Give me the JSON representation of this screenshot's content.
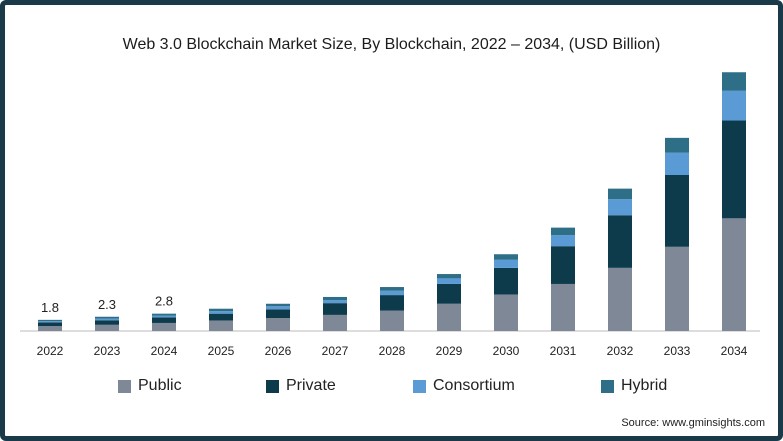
{
  "chart_data": {
    "type": "bar",
    "stacked": true,
    "title": "Web 3.0 Blockchain Market Size, By Blockchain, 2022 – 2034, (USD Billion)",
    "categories": [
      "2022",
      "2023",
      "2024",
      "2025",
      "2026",
      "2027",
      "2028",
      "2029",
      "2030",
      "2031",
      "2032",
      "2033",
      "2034"
    ],
    "series": [
      {
        "name": "Public",
        "color": "#7f8896",
        "values": [
          0.8,
          1.0,
          1.3,
          1.7,
          2.1,
          2.6,
          3.3,
          4.4,
          5.9,
          7.6,
          10.2,
          13.6,
          18.2
        ]
      },
      {
        "name": "Private",
        "color": "#0d3b4c",
        "values": [
          0.6,
          0.7,
          0.9,
          1.1,
          1.4,
          1.9,
          2.5,
          3.2,
          4.3,
          6.1,
          8.5,
          11.6,
          15.8
        ]
      },
      {
        "name": "Consortium",
        "color": "#5b9bd5",
        "values": [
          0.2,
          0.3,
          0.3,
          0.4,
          0.5,
          0.5,
          0.7,
          0.9,
          1.3,
          1.8,
          2.6,
          3.6,
          4.8
        ]
      },
      {
        "name": "Hybrid",
        "color": "#2e6e87",
        "values": [
          0.2,
          0.3,
          0.3,
          0.4,
          0.4,
          0.5,
          0.6,
          0.7,
          0.9,
          1.2,
          1.7,
          2.4,
          3.0
        ]
      }
    ],
    "data_labels": [
      "1.8",
      "2.3",
      "2.8"
    ],
    "ylim": [
      0,
      42
    ],
    "xlabel": "",
    "ylabel": "",
    "grid": false,
    "legend_position": "bottom"
  },
  "source": "Source: www.gminsights.com"
}
